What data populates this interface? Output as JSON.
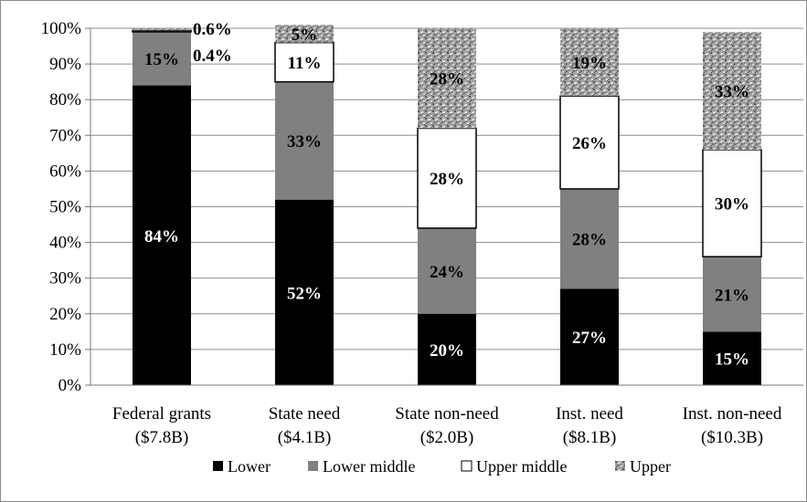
{
  "chart_data": {
    "type": "bar",
    "stacked": true,
    "categories": [
      [
        "Federal grants",
        "($7.8B)"
      ],
      [
        "State need",
        "($4.1B)"
      ],
      [
        "State non-need",
        "($2.0B)"
      ],
      [
        "Inst. need",
        "($8.1B)"
      ],
      [
        "Inst. non-need",
        "($10.3B)"
      ]
    ],
    "series": [
      {
        "name": "Lower",
        "values": [
          84,
          52,
          20,
          27,
          15
        ],
        "labels": [
          "84%",
          "52%",
          "20%",
          "27%",
          "15%"
        ],
        "color": "#000000",
        "label_color": "#ffffff"
      },
      {
        "name": "Lower middle",
        "values": [
          15,
          33,
          24,
          28,
          21
        ],
        "labels": [
          "15%",
          "33%",
          "24%",
          "28%",
          "21%"
        ],
        "color": "#808080",
        "label_color": "#000000"
      },
      {
        "name": "Upper middle",
        "values": [
          0.4,
          11,
          28,
          26,
          30
        ],
        "labels": [
          "0.4%",
          "11%",
          "28%",
          "26%",
          "30%"
        ],
        "color": "#ffffff",
        "label_color": "#000000"
      },
      {
        "name": "Upper",
        "values": [
          0.6,
          5,
          28,
          19,
          33
        ],
        "labels": [
          "0.6%",
          "5%",
          "28%",
          "19%",
          "33%"
        ],
        "color": "#9a9a9a",
        "label_color": "#000000",
        "pattern": "speckled"
      }
    ],
    "ylim": [
      0,
      100
    ],
    "yticks": [
      "0%",
      "10%",
      "20%",
      "30%",
      "40%",
      "50%",
      "60%",
      "70%",
      "80%",
      "90%",
      "100%"
    ],
    "grid": true,
    "legend_position": "bottom",
    "title": "",
    "xlabel": "",
    "ylabel": ""
  }
}
